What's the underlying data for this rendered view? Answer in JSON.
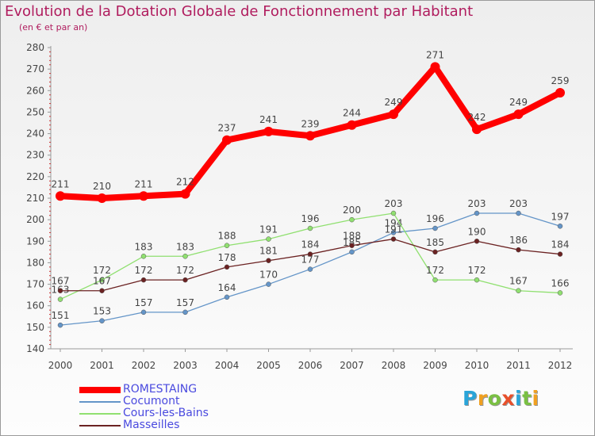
{
  "title": "Evolution de la Dotation Globale de Fonctionnement par Habitant",
  "subtitle": "(en € et par an)",
  "logo": {
    "letters": [
      "P",
      "r",
      "o",
      "x",
      "i",
      "t",
      "i"
    ],
    "colors": [
      "#2aa4d8",
      "#f0a020",
      "#7ac043",
      "#e8502b",
      "#2aa4d8",
      "#7ac043",
      "#f0a020"
    ]
  },
  "colors": {
    "ROMESTAING": "#ff0000",
    "Cocumont": "#6495c8",
    "Cours-les-Bains": "#90e070",
    "Masseilles": "#6b2222",
    "title": "#b01c5e",
    "legend_text": "#4a4adf"
  },
  "chart_data": {
    "type": "line",
    "title": "Evolution de la Dotation Globale de Fonctionnement par Habitant",
    "subtitle": "(en € et par an)",
    "x": [
      "2000",
      "2001",
      "2002",
      "2003",
      "2004",
      "2005",
      "2006",
      "2007",
      "2008",
      "2009",
      "2010",
      "2011",
      "2012"
    ],
    "yticks": [
      140,
      150,
      160,
      170,
      180,
      190,
      200,
      210,
      220,
      230,
      240,
      250,
      260,
      270,
      280
    ],
    "ylim": [
      140,
      280
    ],
    "grid": false,
    "legend_position": "bottom-left",
    "series": [
      {
        "name": "ROMESTAING",
        "values": [
          211,
          210,
          211,
          212,
          237,
          241,
          239,
          244,
          249,
          271,
          242,
          249,
          259
        ]
      },
      {
        "name": "Cocumont",
        "values": [
          151,
          153,
          157,
          157,
          164,
          170,
          177,
          185,
          194,
          196,
          203,
          203,
          197
        ]
      },
      {
        "name": "Cours-les-Bains",
        "values": [
          163,
          172,
          183,
          183,
          188,
          191,
          196,
          200,
          203,
          172,
          172,
          167,
          166
        ]
      },
      {
        "name": "Masseilles",
        "values": [
          167,
          167,
          172,
          172,
          178,
          181,
          184,
          188,
          191,
          185,
          190,
          186,
          184
        ]
      }
    ]
  }
}
